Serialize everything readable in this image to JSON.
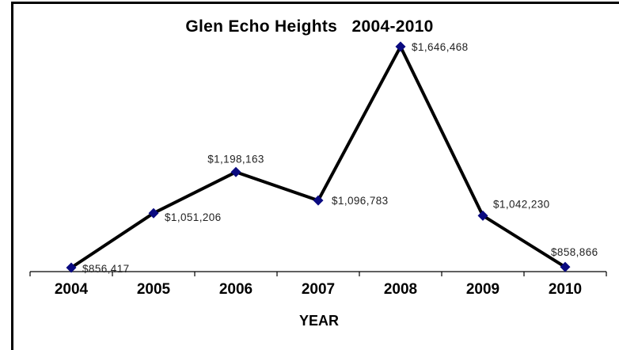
{
  "chart_data": {
    "type": "line",
    "title": "Glen Echo Heights   2004-2010",
    "xlabel": "YEAR",
    "ylabel": "",
    "categories": [
      "2004",
      "2005",
      "2006",
      "2007",
      "2008",
      "2009",
      "2010"
    ],
    "series": [
      {
        "values": [
          856417,
          1051206,
          1198163,
          1096783,
          1646468,
          1042230,
          858866
        ],
        "labels": [
          "$856,417",
          "$1,051,206",
          "$1,198,163",
          "$1,096,783",
          "$1,646,468",
          "$1,042,230",
          "$858,866"
        ]
      }
    ],
    "ylim": [
      780000,
      1700000
    ],
    "grid": false,
    "legend": "none",
    "colors": {
      "line": "#000000",
      "marker": "#0a0a80",
      "axis": "#000000"
    }
  }
}
